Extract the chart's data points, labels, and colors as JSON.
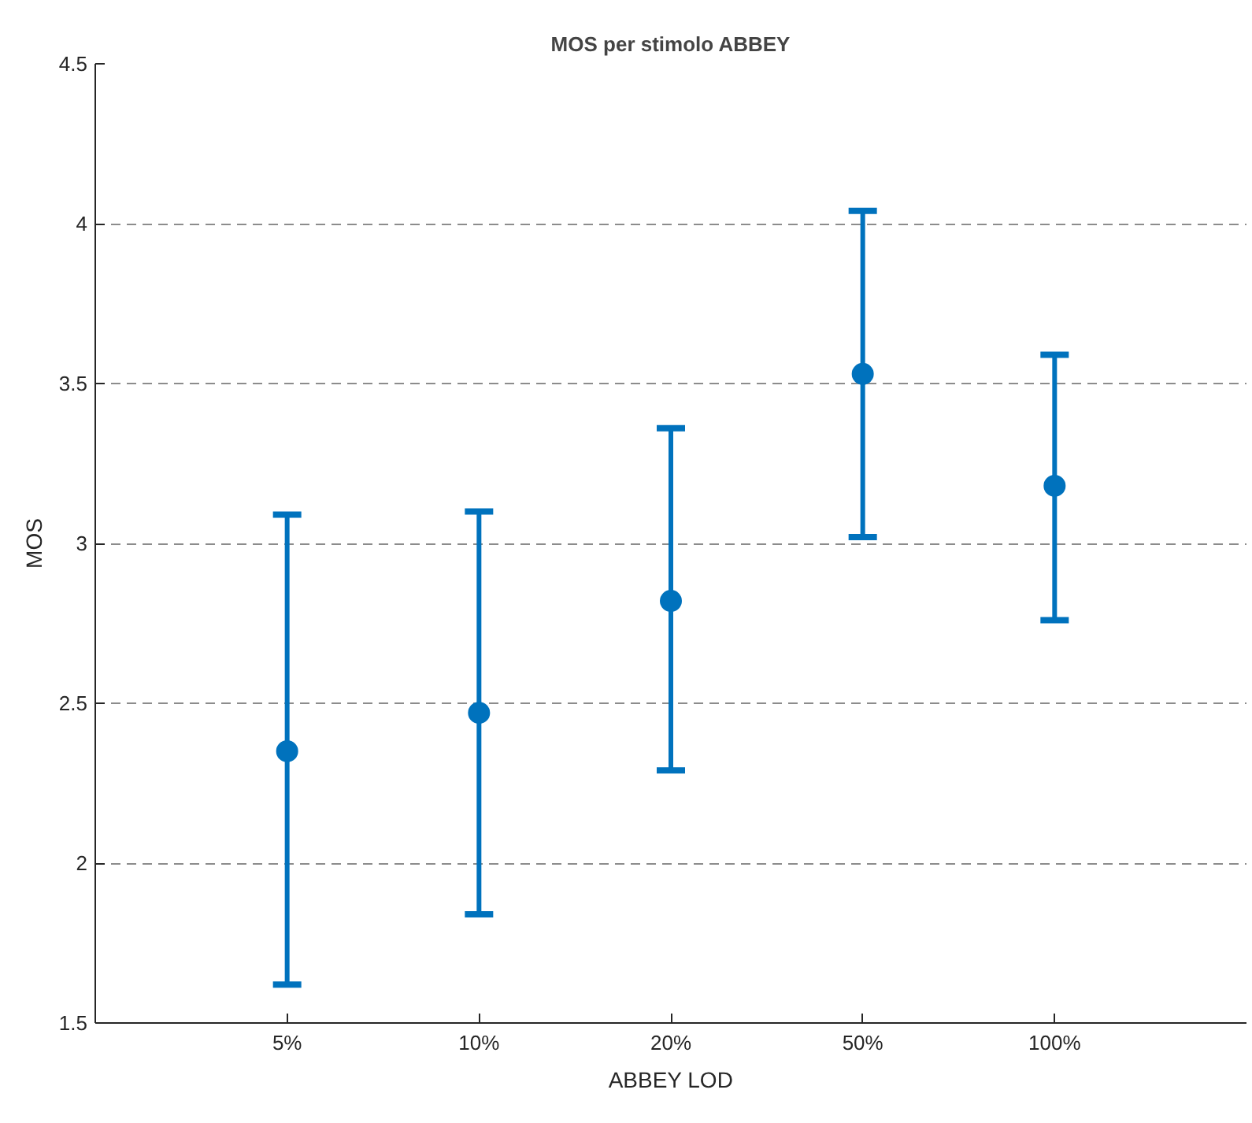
{
  "chart_data": {
    "type": "scatter",
    "title": "MOS per stimolo ABBEY",
    "xlabel": "ABBEY LOD",
    "ylabel": "MOS",
    "categories": [
      "5%",
      "10%",
      "20%",
      "50%",
      "100%"
    ],
    "series": [
      {
        "color": "#0072bd",
        "values": [
          2.35,
          2.47,
          2.82,
          3.53,
          3.18
        ],
        "errors": [
          [
            1.62,
            3.09
          ],
          [
            1.84,
            3.1
          ],
          [
            2.29,
            3.36
          ],
          [
            3.02,
            4.04
          ],
          [
            2.76,
            3.59
          ]
        ]
      }
    ],
    "ylim": [
      1.5,
      4.5
    ],
    "yticks": [
      1.5,
      2,
      2.5,
      3,
      3.5,
      4,
      4.5
    ],
    "grid": "y",
    "marker": "circle"
  }
}
